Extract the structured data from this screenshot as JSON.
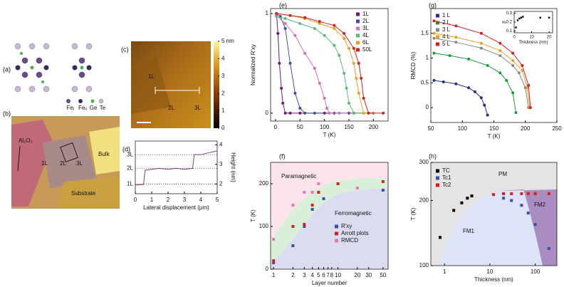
{
  "panel_a": {
    "label": "(a)",
    "legend": [
      {
        "text": "Fe",
        "sub": "I"
      },
      {
        "text": "Fe",
        "sub": "II"
      },
      {
        "text": "Ge"
      },
      {
        "text": "Te"
      }
    ]
  },
  "panel_b": {
    "label": "(b)",
    "labels": [
      "Al₂O₃",
      "1L",
      "2L",
      "3L",
      "Bulk",
      "Substrate"
    ]
  },
  "panel_c": {
    "label": "(c)",
    "labels": [
      "1L",
      "2L",
      "3L"
    ],
    "colorbar_lim": [
      0,
      5
    ],
    "colorbar_ticks": [
      0,
      1,
      2,
      3,
      4,
      {
        "value": 5,
        "label": "5 nm"
      }
    ]
  },
  "chart_data": [
    {
      "type": "line",
      "label": "(d)",
      "xlabel": "Lateral displacement (μm)",
      "ylabel": "Height (nm)",
      "yaxis": "right",
      "markers": false,
      "xlim": [
        0,
        5
      ],
      "xticks": [
        0,
        1,
        2,
        3,
        4,
        5
      ],
      "ylim": [
        1.5,
        4.2
      ],
      "yticks": [
        2,
        3,
        4
      ],
      "levels": [
        {
          "value": 2.0,
          "label": "1L"
        },
        {
          "value": 2.8,
          "label": "2L"
        },
        {
          "value": 3.5,
          "label": "3L"
        }
      ],
      "series": [
        {
          "name": "profile",
          "color": "#7a3f7a",
          "x": [
            0,
            0.5,
            0.6,
            1,
            1.5,
            2,
            2.5,
            3,
            3.5,
            3.6,
            4,
            4.5,
            5
          ],
          "values": [
            1.95,
            1.97,
            2.7,
            2.75,
            2.8,
            2.75,
            2.8,
            2.75,
            2.8,
            3.5,
            3.5,
            3.6,
            3.7
          ]
        }
      ]
    },
    {
      "type": "line",
      "label": "(e)",
      "xlabel": "T (K)",
      "ylabel": "Normalized R′xy",
      "legend": "upper right",
      "xlim": [
        -10,
        230
      ],
      "xticks": [
        0,
        50,
        100,
        150,
        200
      ],
      "ylim": [
        -0.08,
        1.05
      ],
      "yticks": [
        0,
        1
      ],
      "series": [
        {
          "name": "1L",
          "color": "#6a1b6a",
          "x": [
            2,
            5,
            8,
            12,
            15,
            20,
            30,
            50,
            100,
            150,
            200
          ],
          "values": [
            1,
            0.8,
            0.5,
            0.25,
            0.1,
            0,
            0,
            0,
            0,
            0,
            0
          ]
        },
        {
          "name": "2L",
          "color": "#3b4fa8",
          "x": [
            2,
            10,
            20,
            30,
            40,
            50,
            60,
            80,
            120,
            160,
            200
          ],
          "values": [
            1,
            0.97,
            0.85,
            0.5,
            0.2,
            0.05,
            0,
            0,
            0,
            0,
            0
          ]
        },
        {
          "name": "3L",
          "color": "#d070b0",
          "x": [
            2,
            20,
            40,
            60,
            80,
            90,
            100,
            105,
            110,
            130,
            160,
            200
          ],
          "values": [
            0.98,
            0.9,
            0.78,
            0.6,
            0.45,
            0.3,
            0.15,
            0.05,
            0,
            0,
            0,
            0
          ]
        },
        {
          "name": "4L",
          "color": "#5cb87a",
          "x": [
            2,
            20,
            50,
            80,
            100,
            120,
            130,
            140,
            145,
            150,
            160,
            200
          ],
          "values": [
            0.97,
            0.95,
            0.9,
            0.85,
            0.78,
            0.68,
            0.58,
            0.4,
            0.25,
            0.1,
            0,
            0
          ]
        },
        {
          "name": "6L",
          "color": "#e8a020",
          "x": [
            2,
            30,
            60,
            90,
            120,
            140,
            150,
            160,
            165,
            170,
            180,
            200
          ],
          "values": [
            1,
            0.98,
            0.95,
            0.9,
            0.85,
            0.75,
            0.65,
            0.5,
            0.35,
            0.2,
            0,
            0
          ]
        },
        {
          "name": "50L",
          "color": "#d62020",
          "x": [
            2,
            30,
            60,
            90,
            120,
            140,
            160,
            170,
            175,
            180,
            190,
            220
          ],
          "values": [
            1,
            0.98,
            0.96,
            0.92,
            0.88,
            0.8,
            0.65,
            0.5,
            0.35,
            0.15,
            0,
            0
          ]
        }
      ]
    },
    {
      "type": "scatter",
      "label": "(f)",
      "xlabel": "Layer number",
      "ylabel": "T (K)",
      "legend": "lower right",
      "xlog": true,
      "xlim": [
        0.9,
        60
      ],
      "xticks": [
        1,
        2,
        3,
        4,
        5,
        6,
        7,
        8,
        10,
        20,
        30,
        50
      ],
      "ylim": [
        0,
        250
      ],
      "yticks": [
        0,
        100,
        200
      ],
      "annotations": [
        "Paramagnetic",
        "Ferromagnetic"
      ],
      "series": [
        {
          "name": "R′xy",
          "color": "#3b4fa8",
          "x": [
            1,
            2,
            3,
            4,
            6,
            50
          ],
          "values": [
            15,
            55,
            100,
            140,
            165,
            185
          ]
        },
        {
          "name": "Arrott plots",
          "color": "#d62020",
          "x": [
            1,
            2,
            3,
            4,
            5,
            10,
            50
          ],
          "values": [
            20,
            100,
            105,
            150,
            180,
            200,
            205
          ]
        },
        {
          "name": "RMCD",
          "color": "#e07ab8",
          "x": [
            1,
            2,
            3,
            4,
            5,
            20
          ],
          "values": [
            70,
            150,
            180,
            180,
            200,
            190
          ]
        }
      ]
    },
    {
      "type": "line",
      "label": "(g)",
      "xlabel": "T (K)",
      "ylabel": "RMCD (%)",
      "legend": "upper left",
      "xlim": [
        50,
        250
      ],
      "xticks": [
        50,
        100,
        150,
        200,
        250
      ],
      "ylim": [
        -0.3,
        2.0
      ],
      "yticks": [
        0,
        0.5,
        1,
        1.5
      ],
      "series": [
        {
          "name": "1 L",
          "color": "#2a2a8a",
          "x": [
            55,
            70,
            90,
            110,
            120,
            130,
            135,
            140
          ],
          "values": [
            0.55,
            0.52,
            0.48,
            0.4,
            0.32,
            0.2,
            0.05,
            -0.15
          ]
        },
        {
          "name": "2 L",
          "color": "#1a9a3a",
          "x": [
            55,
            80,
            110,
            140,
            160,
            170,
            180,
            185
          ],
          "values": [
            1.1,
            1.05,
            0.98,
            0.85,
            0.7,
            0.55,
            0.3,
            -0.1
          ]
        },
        {
          "name": "3 L",
          "color": "#888888",
          "x": [
            55,
            90,
            130,
            160,
            180,
            190,
            200,
            205
          ],
          "values": [
            1.4,
            1.32,
            1.2,
            1.05,
            0.85,
            0.7,
            0.4,
            0
          ]
        },
        {
          "name": "4 L",
          "color": "#e8a020",
          "x": [
            55,
            90,
            130,
            160,
            180,
            195,
            203,
            207
          ],
          "values": [
            1.5,
            1.42,
            1.3,
            1.15,
            0.95,
            0.75,
            0.4,
            0
          ]
        },
        {
          "name": "5 L",
          "color": "#d62020",
          "x": [
            55,
            90,
            130,
            160,
            180,
            195,
            205,
            208
          ],
          "values": [
            1.75,
            1.65,
            1.5,
            1.3,
            1.1,
            0.85,
            0.45,
            0
          ]
        }
      ]
    },
    {
      "type": "scatter",
      "xlabel": "Thickness (nm)",
      "ylabel": "β",
      "xlim": [
        0,
        22
      ],
      "xticks": [
        0,
        10,
        20
      ],
      "ylim": [
        0.08,
        0.32
      ],
      "yticks": [
        0.1,
        0.2,
        0.3
      ],
      "series": [
        {
          "name": "β",
          "color": "#000000",
          "x": [
            1,
            2,
            3,
            4,
            5,
            15,
            20
          ],
          "values": [
            0.14,
            0.22,
            0.24,
            0.25,
            0.26,
            0.25,
            0.25
          ]
        }
      ]
    },
    {
      "type": "scatter",
      "label": "(h)",
      "xlabel": "Thickness (nm)",
      "ylabel": "T (K)",
      "legend": "upper left",
      "xlog": true,
      "ylog": true,
      "xlim": [
        0.5,
        300
      ],
      "xticks": [
        1,
        10,
        100
      ],
      "ylim": [
        100,
        300
      ],
      "yticks": [
        100,
        200,
        300
      ],
      "annotations": [
        "PM",
        "FM1",
        "FM2"
      ],
      "series": [
        {
          "name": "TC",
          "color": "#000000",
          "x": [
            0.8,
            1.6,
            2.4,
            3.2,
            4
          ],
          "values": [
            135,
            180,
            195,
            205,
            210
          ]
        },
        {
          "name": "Tc1",
          "color": "#3b4fa8",
          "x": [
            20,
            30,
            50,
            70,
            100,
            200
          ],
          "values": [
            205,
            200,
            190,
            175,
            155,
            120
          ]
        },
        {
          "name": "Tc2",
          "color": "#d62020",
          "x": [
            12,
            20,
            30,
            50,
            70,
            100,
            200
          ],
          "values": [
            213,
            215,
            215,
            215,
            215,
            215,
            215
          ]
        }
      ]
    }
  ]
}
